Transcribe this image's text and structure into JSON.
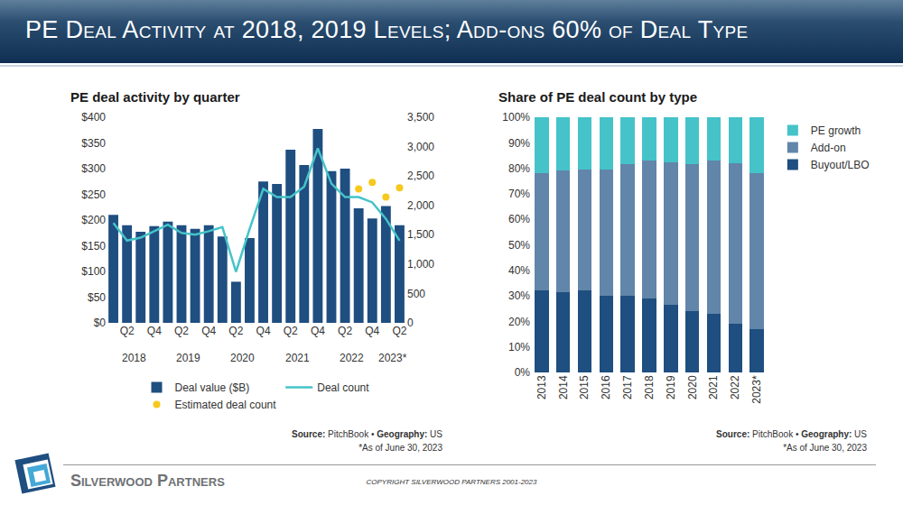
{
  "title": "PE Deal Activity at 2018, 2019 Levels; Add-ons 60% of Deal Type",
  "chart_data": [
    {
      "type": "bar",
      "title": "PE deal activity by quarter",
      "categories": [
        null,
        "Q2",
        null,
        "Q4",
        null,
        "Q2",
        null,
        "Q4",
        null,
        "Q2",
        null,
        "Q4",
        null,
        "Q2",
        null,
        "Q4",
        null,
        "Q2",
        null,
        "Q4",
        null,
        "Q2"
      ],
      "groups": [
        {
          "label": "2018",
          "start": 0,
          "end": 3
        },
        {
          "label": "2019",
          "start": 4,
          "end": 7
        },
        {
          "label": "2020",
          "start": 8,
          "end": 11
        },
        {
          "label": "2021",
          "start": 12,
          "end": 15
        },
        {
          "label": "2022",
          "start": 16,
          "end": 19
        },
        {
          "label": "2023*",
          "start": 20,
          "end": 21
        }
      ],
      "series": [
        {
          "name": "Deal value ($B)",
          "type": "bar",
          "color": "#1f4e80",
          "values": [
            210,
            190,
            177,
            188,
            197,
            190,
            183,
            190,
            168,
            80,
            165,
            275,
            270,
            337,
            307,
            377,
            295,
            300,
            223,
            203,
            227,
            190
          ]
        },
        {
          "name": "Deal count",
          "type": "line",
          "axis": "y2",
          "color": "#45c3c9",
          "line_style": "solid",
          "values": [
            1700,
            1400,
            1450,
            1560,
            1670,
            1530,
            1500,
            1560,
            1630,
            870,
            1600,
            2280,
            2140,
            2140,
            2320,
            2970,
            2370,
            2140,
            2140,
            2050,
            1770,
            1400
          ]
        },
        {
          "name": "Estimated deal count",
          "type": "scatter",
          "axis": "y2",
          "color": "#f7c81e",
          "marker": "circle",
          "values": [
            null,
            null,
            null,
            null,
            null,
            null,
            null,
            null,
            null,
            null,
            null,
            null,
            null,
            null,
            null,
            null,
            null,
            null,
            2280,
            2390,
            2140,
            2300
          ]
        }
      ],
      "ylim": [
        0,
        400
      ],
      "yticks": [
        {
          "value": 0,
          "label": "$0"
        },
        {
          "value": 50,
          "label": "$50"
        },
        {
          "value": 100,
          "label": "$100"
        },
        {
          "value": 150,
          "label": "$150"
        },
        {
          "value": 200,
          "label": "$200"
        },
        {
          "value": 250,
          "label": "$250"
        },
        {
          "value": 300,
          "label": "$300"
        },
        {
          "value": 350,
          "label": "$350"
        },
        {
          "value": 400,
          "label": "$400"
        }
      ],
      "y2lim": [
        0,
        3500
      ],
      "y2ticks": [
        0,
        500,
        {
          "value": 1000,
          "label": "1,000"
        },
        {
          "value": 1500,
          "label": "1,500"
        },
        {
          "value": 2000,
          "label": "2,000"
        },
        {
          "value": 2500,
          "label": "2,500"
        },
        {
          "value": 3000,
          "label": "3,000"
        },
        {
          "value": 3500,
          "label": "3,500"
        }
      ],
      "grid": false,
      "legend": "bottom",
      "source": "Source: PitchBook • Geography: US",
      "note": "*As of June 30, 2023"
    },
    {
      "type": "bar",
      "title": "Share of PE deal count by type",
      "categories": [
        "2013",
        "2014",
        "2015",
        "2016",
        "2017",
        "2018",
        "2019",
        "2020",
        "2021",
        "2022",
        "2023*"
      ],
      "stacked": true,
      "series": [
        {
          "name": "Buyout/LBO",
          "color": "#1f4e80",
          "values": [
            32,
            31.5,
            32,
            30,
            30,
            29,
            26.5,
            24,
            23,
            19,
            17
          ]
        },
        {
          "name": "Add-on",
          "color": "#6285aa",
          "values": [
            46,
            47.5,
            47.5,
            49.5,
            51.5,
            54,
            56,
            57.5,
            60,
            63,
            61
          ]
        },
        {
          "name": "PE growth",
          "color": "#45c3c9",
          "values": [
            22,
            21,
            20.5,
            20.5,
            18.5,
            17,
            17.5,
            18.5,
            17,
            18,
            22
          ]
        }
      ],
      "ylim": [
        0,
        100
      ],
      "yticks": [
        {
          "value": 0,
          "label": "0%"
        },
        {
          "value": 10,
          "label": "10%"
        },
        {
          "value": 20,
          "label": "20%"
        },
        {
          "value": 30,
          "label": "30%"
        },
        {
          "value": 40,
          "label": "40%"
        },
        {
          "value": 50,
          "label": "50%"
        },
        {
          "value": 60,
          "label": "60%"
        },
        {
          "value": 70,
          "label": "70%"
        },
        {
          "value": 80,
          "label": "80%"
        },
        {
          "value": 90,
          "label": "90%"
        },
        {
          "value": 100,
          "label": "100%"
        }
      ],
      "grid": false,
      "legend": "right",
      "source": "Source: PitchBook • Geography: US",
      "note": "*As of June 30, 2023"
    }
  ],
  "footer": {
    "company": "Silverwood Partners",
    "copyright": "COPYRIGHT SILVERWOOD PARTNERS 2001-2023"
  }
}
